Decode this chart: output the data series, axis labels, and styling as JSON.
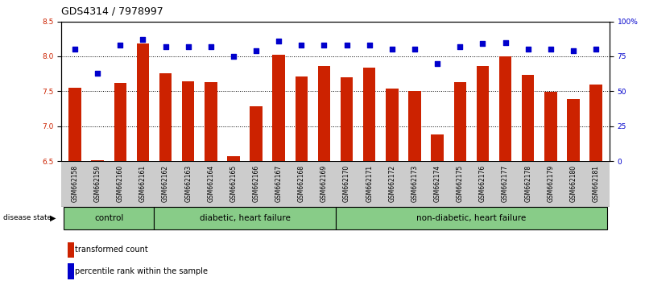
{
  "title": "GDS4314 / 7978997",
  "samples": [
    "GSM662158",
    "GSM662159",
    "GSM662160",
    "GSM662161",
    "GSM662162",
    "GSM662163",
    "GSM662164",
    "GSM662165",
    "GSM662166",
    "GSM662167",
    "GSM662168",
    "GSM662169",
    "GSM662170",
    "GSM662171",
    "GSM662172",
    "GSM662173",
    "GSM662174",
    "GSM662175",
    "GSM662176",
    "GSM662177",
    "GSM662178",
    "GSM662179",
    "GSM662180",
    "GSM662181"
  ],
  "bar_values": [
    7.55,
    6.51,
    7.62,
    8.18,
    7.76,
    7.64,
    7.63,
    6.57,
    7.28,
    8.02,
    7.71,
    7.86,
    7.7,
    7.84,
    7.54,
    7.5,
    6.88,
    7.63,
    7.86,
    8.0,
    7.73,
    7.49,
    7.39,
    7.6
  ],
  "dot_values": [
    80,
    63,
    83,
    87,
    82,
    82,
    82,
    75,
    79,
    86,
    83,
    83,
    83,
    83,
    80,
    80,
    70,
    82,
    84,
    85,
    80,
    80,
    79,
    80
  ],
  "ylim_left": [
    6.5,
    8.5
  ],
  "ylim_right": [
    0,
    100
  ],
  "yticks_left": [
    6.5,
    7.0,
    7.5,
    8.0,
    8.5
  ],
  "yticks_right": [
    0,
    25,
    50,
    75,
    100
  ],
  "ytick_labels_right": [
    "0",
    "25",
    "50",
    "75",
    "100%"
  ],
  "hlines": [
    7.0,
    7.5,
    8.0
  ],
  "bar_color": "#CC2200",
  "dot_color": "#0000CC",
  "groups": [
    {
      "label": "control",
      "start": 0,
      "end": 4
    },
    {
      "label": "diabetic, heart failure",
      "start": 4,
      "end": 12
    },
    {
      "label": "non-diabetic, heart failure",
      "start": 12,
      "end": 24
    }
  ],
  "group_bg_color": "#88CC88",
  "xtick_bg_color": "#CCCCCC",
  "legend_bar_label": "transformed count",
  "legend_dot_label": "percentile rank within the sample",
  "disease_state_label": "disease state",
  "title_fontsize": 9,
  "tick_fontsize": 6.5,
  "group_label_fontsize": 7.5
}
